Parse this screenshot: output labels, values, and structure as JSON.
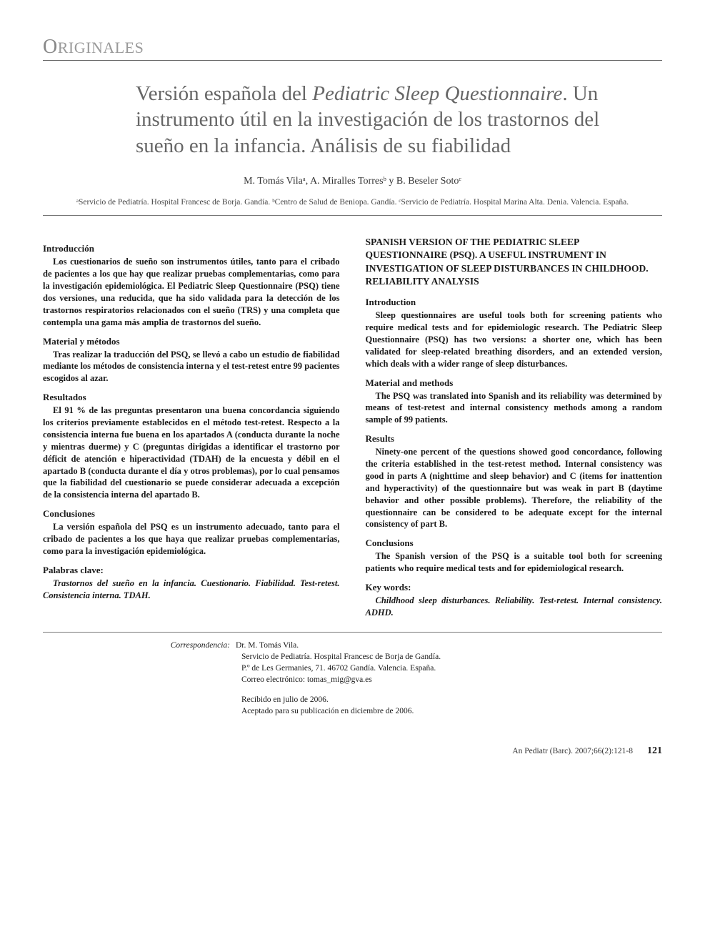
{
  "section_label_first": "O",
  "section_label_rest": "RIGINALES",
  "title_pre": "Versión española del ",
  "title_italic": "Pediatric Sleep Questionnaire",
  "title_post": ". Un instrumento útil en la investigación de los trastornos del sueño en la infancia. Análisis de su fiabilidad",
  "authors": "M. Tomás Vilaᵃ, A. Miralles Torresᵇ y B. Beseler Sotoᶜ",
  "affiliations": "ᵃServicio de Pediatría. Hospital Francesc de Borja. Gandía. ᵇCentro de Salud de Beniopa. Gandía. ᶜServicio de Pediatría. Hospital Marina Alta. Denia. Valencia. España.",
  "left": {
    "intro_h": "Introducción",
    "intro_t": "Los cuestionarios de sueño son instrumentos útiles, tanto para el cribado de pacientes a los que hay que realizar pruebas complementarias, como para la investigación epidemiológica. El Pediatric Sleep Questionnaire (PSQ) tiene dos versiones, una reducida, que ha sido validada para la detección de los trastornos respiratorios relacionados con el sueño (TRS) y una completa que contempla una gama más amplia de trastornos del sueño.",
    "meth_h": "Material y métodos",
    "meth_t": "Tras realizar la traducción del PSQ, se llevó a cabo un estudio de fiabilidad mediante los métodos de consistencia interna y el test-retest entre 99 pacientes escogidos al azar.",
    "res_h": "Resultados",
    "res_t": "El 91 % de las preguntas presentaron una buena concordancia siguiendo los criterios previamente establecidos en el método test-retest. Respecto a la consistencia interna fue buena en los apartados A (conducta durante la noche y mientras duerme) y C (preguntas dirigidas a identificar el trastorno por déficit de atención e hiperactividad (TDAH) de la encuesta y débil en el apartado B (conducta durante el día y otros problemas), por lo cual pensamos que la fiabilidad del cuestionario se puede considerar adecuada a excepción de la consistencia interna del apartado B.",
    "conc_h": "Conclusiones",
    "conc_t": "La versión española del PSQ es un instrumento adecuado, tanto para el cribado de pacientes a los que haya que realizar pruebas complementarias, como para la investigación epidemiológica.",
    "kw_h": "Palabras clave:",
    "kw_t": "Trastornos del sueño en la infancia. Cuestionario. Fiabilidad. Test-retest. Consistencia interna. TDAH."
  },
  "right": {
    "title": "SPANISH VERSION OF THE PEDIATRIC SLEEP QUESTIONNAIRE (PSQ). A USEFUL INSTRUMENT IN INVESTIGATION OF SLEEP DISTURBANCES IN CHILDHOOD. RELIABILITY ANALYSIS",
    "intro_h": "Introduction",
    "intro_t": "Sleep questionnaires are useful tools both for screening patients who require medical tests and for epidemiologic research. The Pediatric Sleep Questionnaire (PSQ) has two versions: a shorter one, which has been validated for sleep-related breathing disorders, and an extended version, which deals with a wider range of sleep disturbances.",
    "meth_h": "Material and methods",
    "meth_t": "The PSQ was translated into Spanish and its reliability was determined by means of test-retest and internal consistency methods among a random sample of 99 patients.",
    "res_h": "Results",
    "res_t": "Ninety-one percent of the questions showed good concordance, following the criteria established in the test-retest method. Internal consistency was good in parts A (nighttime and sleep behavior) and C (items for inattention and hyperactivity) of the questionnaire but was weak in part B (daytime behavior and other possible problems). Therefore, the reliability of the questionnaire can be considered to be adequate except for the internal consistency of part B.",
    "conc_h": "Conclusions",
    "conc_t": "The Spanish version of the PSQ is a suitable tool both for screening patients who require medical tests and for epidemiological research.",
    "kw_h": "Key words:",
    "kw_t": "Childhood sleep disturbances. Reliability. Test-retest. Internal consistency. ADHD."
  },
  "corr_label": "Correspondencia:",
  "corr_name": "Dr. M. Tomás Vila.",
  "corr_l1": "Servicio de Pediatría. Hospital Francesc de Borja de Gandía.",
  "corr_l2": "P.º de Les Germanies, 71. 46702 Gandía. Valencia. España.",
  "corr_l3": "Correo electrónico: tomas_mig@gva.es",
  "date_received": "Recibido en julio de 2006.",
  "date_accepted": "Aceptado para su publicación en diciembre de 2006.",
  "citation": "An Pediatr (Barc). 2007;66(2):121-8",
  "page_number": "121"
}
